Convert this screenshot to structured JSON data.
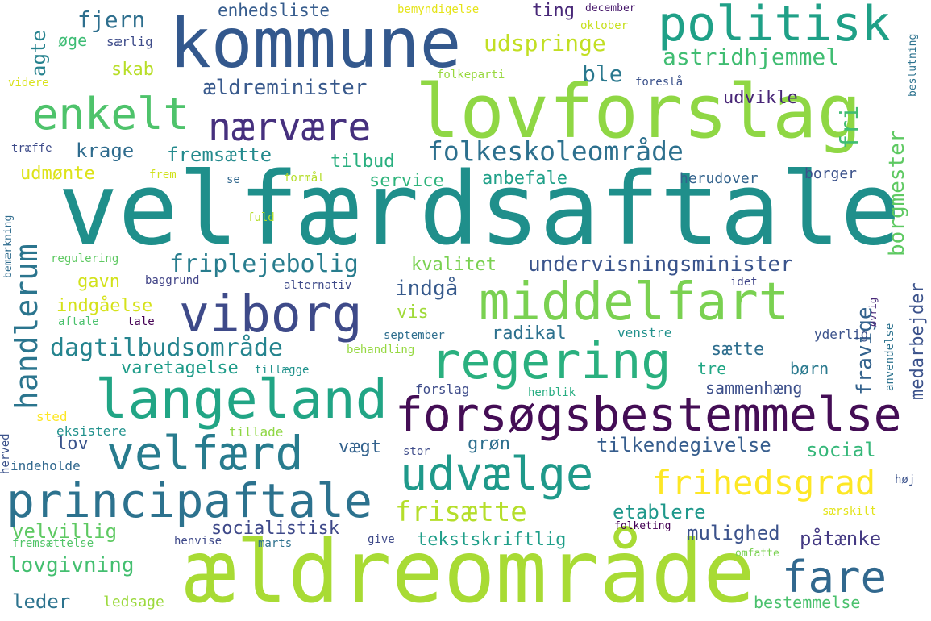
{
  "words": [
    {
      "text": "velfærdsaftale",
      "color": "#1f8f8b"
    },
    {
      "text": "ældreområde",
      "color": "#a8db34"
    },
    {
      "text": "lovforslag",
      "color": "#8fd744"
    },
    {
      "text": "kommune",
      "color": "#33588d"
    },
    {
      "text": "forsøgsbestemmelse",
      "color": "#440d55"
    },
    {
      "text": "langeland",
      "color": "#21a585"
    },
    {
      "text": "middelfart",
      "color": "#7ad151"
    },
    {
      "text": "viborg",
      "color": "#3e4a89"
    },
    {
      "text": "regering",
      "color": "#2ab07f"
    },
    {
      "text": "politisk",
      "color": "#1fa087"
    },
    {
      "text": "principaftale",
      "color": "#2c728e"
    },
    {
      "text": "udvælge",
      "color": "#1f998a"
    },
    {
      "text": "velfærd",
      "color": "#287c8e"
    },
    {
      "text": "enkelt",
      "color": "#4ec36b"
    },
    {
      "text": "nærvære",
      "color": "#46307e"
    },
    {
      "text": "fare",
      "color": "#31688e"
    },
    {
      "text": "frihedsgrad",
      "color": "#fde725"
    },
    {
      "text": "frisætte",
      "color": "#b5de2b"
    },
    {
      "text": "folkeskoleområde",
      "color": "#2d708e"
    },
    {
      "text": "dagtilbudsområde",
      "color": "#25848e"
    },
    {
      "text": "handlerum",
      "color": "#2b758e"
    },
    {
      "text": "friplejebolig",
      "color": "#287d8e"
    },
    {
      "text": "undervisningsminister",
      "color": "#3a548c"
    },
    {
      "text": "udspringe",
      "color": "#c2df23"
    },
    {
      "text": "astridhjemmel",
      "color": "#40bd72"
    },
    {
      "text": "ældreminister",
      "color": "#38598c"
    },
    {
      "text": "fjern",
      "color": "#2e6f8e"
    },
    {
      "text": "enhedsliste",
      "color": "#365c8d"
    },
    {
      "text": "ting",
      "color": "#482878"
    },
    {
      "text": "krage",
      "color": "#2f6c8e"
    },
    {
      "text": "fremsætte",
      "color": "#238a8d"
    },
    {
      "text": "tilbud",
      "color": "#29af7f"
    },
    {
      "text": "ble",
      "color": "#2a788e"
    },
    {
      "text": "udvikle",
      "color": "#482677"
    },
    {
      "text": "agte",
      "color": "#26828e"
    },
    {
      "text": "øge",
      "color": "#3dbc74"
    },
    {
      "text": "særlig",
      "color": "#3e4c8a"
    },
    {
      "text": "skab",
      "color": "#b8de29"
    },
    {
      "text": "udmønte",
      "color": "#dde318"
    },
    {
      "text": "service",
      "color": "#2fb47c"
    },
    {
      "text": "anbefale",
      "color": "#1fa088"
    },
    {
      "text": "herudover",
      "color": "#33638d"
    },
    {
      "text": "borger",
      "color": "#3b528b"
    },
    {
      "text": "kvalitet",
      "color": "#7ad151"
    },
    {
      "text": "gavn",
      "color": "#d2e21b"
    },
    {
      "text": "indgå",
      "color": "#375a8c"
    },
    {
      "text": "vis",
      "color": "#a0da39"
    },
    {
      "text": "indgåelse",
      "color": "#d5e21a"
    },
    {
      "text": "radikal",
      "color": "#2d718e"
    },
    {
      "text": "sætte",
      "color": "#2e6e8e"
    },
    {
      "text": "varetagelse",
      "color": "#1e9c89"
    },
    {
      "text": "tre",
      "color": "#22a785"
    },
    {
      "text": "børn",
      "color": "#29798e"
    },
    {
      "text": "sammenhæng",
      "color": "#3c4f8a"
    },
    {
      "text": "tilkendegivelse",
      "color": "#365d8d"
    },
    {
      "text": "social",
      "color": "#35b779"
    },
    {
      "text": "grøn",
      "color": "#2e6f8e"
    },
    {
      "text": "lov",
      "color": "#3a548c"
    },
    {
      "text": "vægt",
      "color": "#33628d"
    },
    {
      "text": "eksistere",
      "color": "#21918c"
    },
    {
      "text": "velvillig",
      "color": "#5ec962"
    },
    {
      "text": "socialistisk",
      "color": "#3e4989"
    },
    {
      "text": "etablere",
      "color": "#1f988b"
    },
    {
      "text": "mulighed",
      "color": "#3b528b"
    },
    {
      "text": "påtænke",
      "color": "#443a83"
    },
    {
      "text": "tekstskriftlig",
      "color": "#1f9e89"
    },
    {
      "text": "lovgivning",
      "color": "#44bf70"
    },
    {
      "text": "leder",
      "color": "#2c738e"
    },
    {
      "text": "ledsage",
      "color": "#9bd93c"
    },
    {
      "text": "bestemmelse",
      "color": "#4ac16d"
    },
    {
      "text": "fri",
      "color": "#40bd72"
    },
    {
      "text": "borgmester",
      "color": "#5ec962"
    },
    {
      "text": "fravige",
      "color": "#33628d"
    },
    {
      "text": "medarbejder",
      "color": "#3b528b"
    },
    {
      "text": "forslag",
      "color": "#3e4c8a"
    },
    {
      "text": "henblik",
      "color": "#27ad81"
    },
    {
      "text": "sted",
      "color": "#fde725"
    },
    {
      "text": "stor",
      "color": "#3e4c8a"
    },
    {
      "text": "tillade",
      "color": "#8fd744"
    },
    {
      "text": "indeholde",
      "color": "#31688e"
    },
    {
      "text": "herved",
      "color": "#3b528b"
    },
    {
      "text": "tillægge",
      "color": "#20928c"
    },
    {
      "text": "behandling",
      "color": "#95d840"
    },
    {
      "text": "september",
      "color": "#2e6e8e"
    },
    {
      "text": "venstre",
      "color": "#21918c"
    },
    {
      "text": "yderlig",
      "color": "#3b528b"
    },
    {
      "text": "anvendelse",
      "color": "#2c728e"
    },
    {
      "text": "øvrig",
      "color": "#482878"
    },
    {
      "text": "idet",
      "color": "#404688"
    },
    {
      "text": "alternativ",
      "color": "#3e4a89"
    },
    {
      "text": "baggrund",
      "color": "#414487"
    },
    {
      "text": "regulering",
      "color": "#5ec962"
    },
    {
      "text": "aftale",
      "color": "#4ac16d"
    },
    {
      "text": "tale",
      "color": "#440154"
    },
    {
      "text": "bemærkning",
      "color": "#2f6c8e"
    },
    {
      "text": "fuld",
      "color": "#b5de2b"
    },
    {
      "text": "se",
      "color": "#31688e"
    },
    {
      "text": "formål",
      "color": "#b5de2b"
    },
    {
      "text": "frem",
      "color": "#d0e11c"
    },
    {
      "text": "træffe",
      "color": "#3e4c8a"
    },
    {
      "text": "videre",
      "color": "#d8e219"
    },
    {
      "text": "folkeparti",
      "color": "#98d83e"
    },
    {
      "text": "foreslå",
      "color": "#3b528b"
    },
    {
      "text": "beslutning",
      "color": "#2c728e"
    },
    {
      "text": "bemyndigelse",
      "color": "#e5e419"
    },
    {
      "text": "december",
      "color": "#481a6c"
    },
    {
      "text": "oktober",
      "color": "#c8e020"
    },
    {
      "text": "høj",
      "color": "#3b528b"
    },
    {
      "text": "særskilt",
      "color": "#e2e418"
    },
    {
      "text": "folketing",
      "color": "#440154"
    },
    {
      "text": "omfatte",
      "color": "#7ad151"
    },
    {
      "text": "give",
      "color": "#3e4a89"
    },
    {
      "text": "marts",
      "color": "#2d708e"
    },
    {
      "text": "henvise",
      "color": "#3e4989"
    },
    {
      "text": "fremsættelse",
      "color": "#52c569"
    }
  ]
}
